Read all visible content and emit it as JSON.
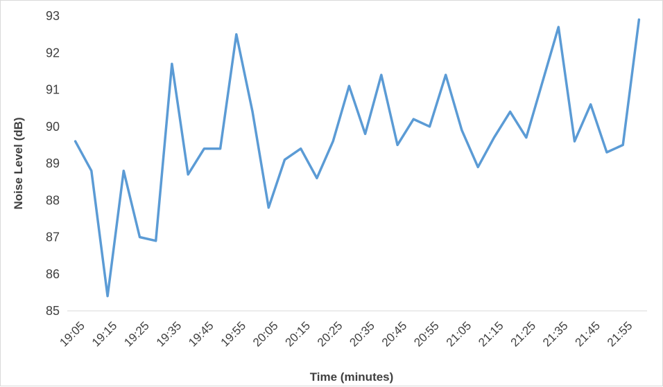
{
  "chart_data": {
    "type": "line",
    "title": "",
    "xlabel": "Time (minutes)",
    "ylabel": "Noise Level (dB)",
    "ylim": [
      85,
      93
    ],
    "yticks": [
      85,
      86,
      87,
      88,
      89,
      90,
      91,
      92,
      93
    ],
    "grid": false,
    "legend": "none",
    "line_color": "#5b9bd5",
    "x": [
      "19:05",
      "19:10",
      "19:15",
      "19:20",
      "19:25",
      "19:30",
      "19:35",
      "19:40",
      "19:45",
      "19:50",
      "19:55",
      "20:00",
      "20:05",
      "20:10",
      "20:15",
      "20:20",
      "20:25",
      "20:30",
      "20:35",
      "20:40",
      "20:45",
      "20:50",
      "20:55",
      "21:00",
      "21:05",
      "21:10",
      "21:15",
      "21:20",
      "21:25",
      "21:30",
      "21:35",
      "21:40",
      "21:45",
      "21:50",
      "21:55",
      "22:00"
    ],
    "xtick_labels": [
      "19:05",
      "19:15",
      "19:25",
      "19:35",
      "19:45",
      "19:55",
      "20:05",
      "20:15",
      "20:25",
      "20:35",
      "20:45",
      "20:55",
      "21:05",
      "21:15",
      "21:25",
      "21:35",
      "21:45",
      "21:55"
    ],
    "series": [
      {
        "values": [
          89.6,
          88.8,
          85.4,
          88.8,
          87.0,
          86.9,
          91.7,
          88.7,
          89.4,
          89.4,
          92.5,
          90.4,
          87.8,
          89.1,
          89.4,
          88.6,
          89.6,
          91.1,
          89.8,
          91.4,
          89.5,
          90.2,
          90.0,
          91.4,
          89.9,
          88.9,
          89.7,
          90.4,
          89.7,
          91.2,
          92.7,
          89.6,
          90.6,
          89.3,
          89.5,
          92.9
        ]
      }
    ]
  }
}
